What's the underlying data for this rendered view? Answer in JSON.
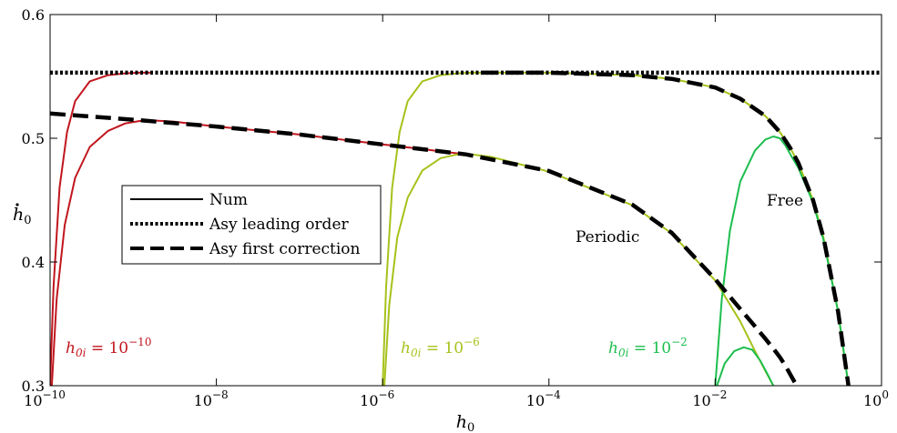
{
  "chart_data": {
    "type": "line",
    "x_scale": "log",
    "xlim": [
      1e-10,
      1
    ],
    "ylim": [
      0.3,
      0.6
    ],
    "xlabel": "h0",
    "ylabel": "ḣ0",
    "x_ticks": [
      1e-10,
      1e-08,
      1e-06,
      0.0001,
      0.01,
      1
    ],
    "x_tick_labels": [
      {
        "base": "10",
        "exp": "−10"
      },
      {
        "base": "10",
        "exp": "−8"
      },
      {
        "base": "10",
        "exp": "−6"
      },
      {
        "base": "10",
        "exp": "−4"
      },
      {
        "base": "10",
        "exp": "−2"
      },
      {
        "base": "10",
        "exp": "0"
      }
    ],
    "y_ticks": [
      0.3,
      0.4,
      0.5,
      0.6
    ],
    "y_tick_labels": [
      "0.3",
      "0.4",
      "0.5",
      "0.6"
    ],
    "grid": false,
    "legend_position": "center-left",
    "legend": [
      {
        "label": "Num",
        "style": "solid",
        "color": "#000000"
      },
      {
        "label": "Asy leading order",
        "style": "dotted",
        "color": "#000000"
      },
      {
        "label": "Asy first correction",
        "style": "dashed",
        "color": "#000000"
      }
    ],
    "annotations": {
      "free": "Free",
      "periodic": "Periodic",
      "h0i_red": {
        "prefix": "h",
        "sub": "0i",
        "eq": " = 10",
        "exp": "−10"
      },
      "h0i_olive": {
        "prefix": "h",
        "sub": "0i",
        "eq": " = 10",
        "exp": "−6"
      },
      "h0i_green": {
        "prefix": "h",
        "sub": "0i",
        "eq": " = 10",
        "exp": "−2"
      }
    },
    "colors": {
      "red": "#C0161E",
      "olive": "#A6C21A",
      "green": "#1DBE4E",
      "black": "#000000"
    },
    "series": [
      {
        "color": "red",
        "style": "solid",
        "x": [
          1e-10,
          1.1e-10,
          1.3e-10,
          1.6e-10,
          2e-10,
          3e-10,
          5e-10,
          8e-10,
          1.2e-09,
          1.6e-09
        ],
        "y": [
          0.3,
          0.38,
          0.46,
          0.505,
          0.53,
          0.546,
          0.551,
          0.5525,
          0.553,
          0.553
        ]
      },
      {
        "color": "red",
        "style": "solid",
        "x": [
          1.05e-10,
          1.2e-10,
          1.5e-10,
          2e-10,
          3e-10,
          5e-10,
          8e-10,
          1.2e-09,
          1.6e-09,
          3e-09,
          1e-08,
          1e-07,
          1e-06,
          1e-05
        ],
        "y": [
          0.3,
          0.37,
          0.43,
          0.468,
          0.493,
          0.506,
          0.512,
          0.514,
          0.5145,
          0.5135,
          0.5095,
          0.503,
          0.495,
          0.487
        ]
      },
      {
        "color": "olive",
        "style": "solid",
        "x": [
          1e-06,
          1.1e-06,
          1.3e-06,
          1.6e-06,
          2e-06,
          3e-06,
          5e-06,
          8e-06,
          1.2e-05,
          1.6e-05
        ],
        "y": [
          0.3,
          0.38,
          0.46,
          0.505,
          0.53,
          0.546,
          0.551,
          0.5525,
          0.553,
          0.553
        ]
      },
      {
        "color": "olive",
        "style": "solid",
        "x": [
          1.05e-06,
          1.2e-06,
          1.5e-06,
          2e-06,
          3e-06,
          5e-06,
          8e-06,
          1e-05,
          2e-05,
          0.0001,
          0.001,
          0.003,
          0.01,
          0.02,
          0.03,
          0.04,
          0.05
        ],
        "y": [
          0.3,
          0.365,
          0.42,
          0.452,
          0.474,
          0.484,
          0.487,
          0.4875,
          0.485,
          0.473,
          0.446,
          0.423,
          0.385,
          0.352,
          0.328,
          0.312,
          0.3
        ]
      },
      {
        "color": "olive",
        "style": "solid",
        "x": [
          1.6e-05,
          0.0001,
          0.001,
          0.003,
          0.01,
          0.02,
          0.04,
          0.06,
          0.08,
          0.1,
          0.15,
          0.2,
          0.3,
          0.4
        ],
        "y": [
          0.553,
          0.553,
          0.551,
          0.548,
          0.541,
          0.532,
          0.518,
          0.505,
          0.492,
          0.48,
          0.45,
          0.42,
          0.36,
          0.3
        ]
      },
      {
        "color": "green",
        "style": "solid",
        "x": [
          0.01,
          0.012,
          0.015,
          0.02,
          0.03,
          0.04,
          0.05,
          0.06,
          0.07,
          0.08,
          0.1,
          0.15,
          0.2,
          0.3,
          0.4
        ],
        "y": [
          0.3,
          0.37,
          0.425,
          0.465,
          0.49,
          0.499,
          0.5015,
          0.5,
          0.494,
          0.487,
          0.476,
          0.448,
          0.418,
          0.36,
          0.3
        ]
      },
      {
        "color": "green",
        "style": "solid",
        "x": [
          0.0105,
          0.013,
          0.017,
          0.022,
          0.028,
          0.035,
          0.042,
          0.05
        ],
        "y": [
          0.3,
          0.318,
          0.328,
          0.331,
          0.329,
          0.32,
          0.31,
          0.3
        ]
      },
      {
        "color": "black",
        "style": "dotted",
        "x": [
          1e-10,
          1
        ],
        "y": [
          0.553,
          0.553
        ]
      },
      {
        "color": "black",
        "style": "dashed",
        "x": [
          1e-10,
          1e-09,
          1e-08,
          1e-07,
          1e-06,
          1e-05,
          0.0001,
          0.001,
          0.003,
          0.01,
          0.02,
          0.03,
          0.04,
          0.05,
          0.06,
          0.07,
          0.08,
          0.09,
          0.1
        ],
        "y": [
          0.52,
          0.515,
          0.5095,
          0.503,
          0.495,
          0.487,
          0.4735,
          0.4465,
          0.4235,
          0.386,
          0.362,
          0.348,
          0.338,
          0.33,
          0.323,
          0.316,
          0.309,
          0.303,
          0.298
        ]
      },
      {
        "color": "black",
        "style": "dashed",
        "x": [
          1.6e-05,
          0.0001,
          0.001,
          0.003,
          0.01,
          0.02,
          0.04,
          0.06,
          0.08,
          0.1,
          0.15,
          0.2,
          0.3,
          0.4
        ],
        "y": [
          0.553,
          0.553,
          0.551,
          0.548,
          0.541,
          0.532,
          0.518,
          0.505,
          0.492,
          0.48,
          0.45,
          0.42,
          0.36,
          0.3
        ]
      }
    ]
  }
}
